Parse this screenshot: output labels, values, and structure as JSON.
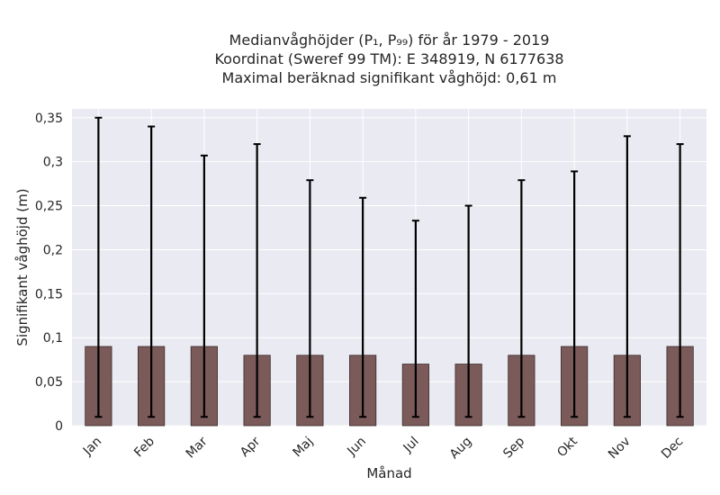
{
  "chart_data": {
    "type": "bar",
    "title_lines": [
      "Medianvåghöjder (P₁, P₉₉) för år 1979 - 2019",
      "Koordinat (Sweref 99 TM): E 348919, N 6177638",
      "Maximal beräknad signifikant våghöjd: 0,61 m"
    ],
    "xlabel": "Månad",
    "ylabel": "Signifikant våghöjd (m)",
    "categories": [
      "Jan",
      "Feb",
      "Mar",
      "Apr",
      "Maj",
      "Jun",
      "Jul",
      "Aug",
      "Sep",
      "Okt",
      "Nov",
      "Dec"
    ],
    "values": [
      0.09,
      0.09,
      0.09,
      0.08,
      0.08,
      0.08,
      0.07,
      0.07,
      0.08,
      0.09,
      0.08,
      0.09
    ],
    "error_low": [
      0.01,
      0.01,
      0.01,
      0.01,
      0.01,
      0.01,
      0.01,
      0.01,
      0.01,
      0.01,
      0.01,
      0.01
    ],
    "error_high": [
      0.35,
      0.34,
      0.307,
      0.32,
      0.279,
      0.259,
      0.233,
      0.25,
      0.279,
      0.289,
      0.329,
      0.32
    ],
    "ylim": [
      0,
      0.36
    ],
    "yticks": [
      0,
      0.05,
      0.1,
      0.15,
      0.2,
      0.25,
      0.3,
      0.35
    ],
    "ytick_labels": [
      "0",
      "0,05",
      "0,1",
      "0,15",
      "0,2",
      "0,25",
      "0,3",
      "0,35"
    ],
    "grid": true,
    "bar_color": "#7b5a5a",
    "error_color": "#000000",
    "background_color": "#eaeaf2"
  }
}
